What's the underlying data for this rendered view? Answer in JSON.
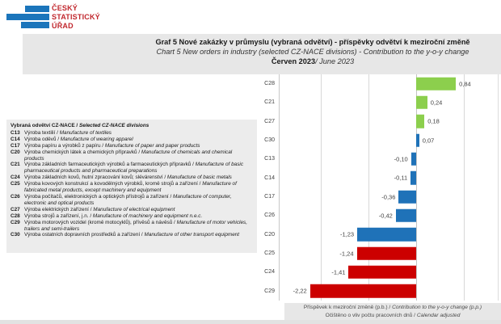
{
  "logo": {
    "line1": "ČESKÝ",
    "line2": "STATISTICKÝ",
    "line3": "ÚŘAD"
  },
  "title": {
    "line1": "Graf 5 Nové zakázky v průmyslu (vybraná odvětví) - příspěvky odvětví k meziroční změně",
    "line2": "Chart 5 New orders in industry (selected CZ-NACE divisions) - Contribution to the y-o-y change",
    "period_bold": "Červen 2023",
    "period_italic": "/ June 2023"
  },
  "legend": {
    "title_cs": "Vybraná odvětví CZ-NACE / ",
    "title_en": "Selected CZ-NACE divisions",
    "items": [
      {
        "code": "C13",
        "cs": "Výroba textilií",
        "en": "Manufacture of textiles"
      },
      {
        "code": "C14",
        "cs": "Výroba oděvů",
        "en": "Manufacture of wearing apparel"
      },
      {
        "code": "C17",
        "cs": "Výroba papíru a výrobků z papíru",
        "en": "Manufacture of paper and paper products"
      },
      {
        "code": "C20",
        "cs": "Výroba chemických látek a chemických přípravků",
        "en": "Manufacture of chemicals and chemical products"
      },
      {
        "code": "C21",
        "cs": "Výroba základních farmaceutických výrobků a farmaceutických přípravků",
        "en": "Manufacture of basic pharmaceutical products and pharmaceutical preparations"
      },
      {
        "code": "C24",
        "cs": "Výroba základních kovů, hutní zpracování kovů; slévárenství",
        "en": "Manufacture of basic metals"
      },
      {
        "code": "C25",
        "cs": "Výroba kovových konstrukcí a kovodělných výrobků, kromě strojů a zařízení",
        "en": "Manufacture of fabricated metal products, except machinery and equipment"
      },
      {
        "code": "C26",
        "cs": "Výroba počítačů, elektronických a optických přístrojů a zařízení",
        "en": "Manufacture of computer, electronic and optical products"
      },
      {
        "code": "C27",
        "cs": "Výroba elektrických zařízení",
        "en": "Manufacture of electrical equipment"
      },
      {
        "code": "C28",
        "cs": "Výroba strojů a zařízení, j.n.",
        "en": "Manufacture of machinery and equipment n.e.c."
      },
      {
        "code": "C29",
        "cs": "Výroba motorových vozidel (kromě motocyklů), přívěsů a návěsů",
        "en": "Manufacture of motor vehicles, trailers and semi-trailers"
      },
      {
        "code": "C30",
        "cs": "Výroba ostatních dopravních prostředků a zařízení",
        "en": "Manufacture of other transport equipment"
      }
    ]
  },
  "footer": {
    "line1_cs": "Příspěvek k meziroční změně (p.b.) / ",
    "line1_en": "Contribution to the y-o-y change (p.p.)",
    "line2_cs": "Očištěno o vliv počtu pracovních dnů / ",
    "line2_en": "Calendar adjusted"
  },
  "colors": {
    "green": "#8ccf4d",
    "blue": "#1f72b8",
    "red": "#cc0000",
    "logo_blue": "#1b75bb",
    "logo_red": "#c1272d",
    "panel_gray": "#e7e7e7"
  },
  "chart_data": {
    "type": "bar",
    "orientation": "horizontal",
    "title": "Graf 5 Nové zakázky v průmyslu (vybraná odvětví) - příspěvky odvětví k meziroční změně / Chart 5 New orders in industry (selected CZ-NACE divisions) - Contribution to the y-o-y change, Červen 2023 / June 2023",
    "xlabel": "Příspěvek k meziroční změně (p.b.) / Contribution to the y-o-y change (p.p.)",
    "note": "Očištěno o vliv počtu pracovních dnů / Calendar adjusted",
    "categories": [
      "C28",
      "C21",
      "C27",
      "C30",
      "C13",
      "C14",
      "C17",
      "C26",
      "C20",
      "C25",
      "C24",
      "C29"
    ],
    "values": [
      0.84,
      0.24,
      0.18,
      0.07,
      -0.1,
      -0.11,
      -0.36,
      -0.42,
      -1.23,
      -1.24,
      -1.41,
      -2.22
    ],
    "value_labels": [
      "0,84",
      "0,24",
      "0,18",
      "0,07",
      "-0,10",
      "-0,11",
      "-0,36",
      "-0,42",
      "-1,23",
      "-1,24",
      "-1,41",
      "-2,22"
    ],
    "bar_colors": [
      "green",
      "green",
      "green",
      "blue",
      "blue",
      "blue",
      "blue",
      "blue",
      "blue",
      "red",
      "red",
      "red"
    ],
    "xlim": [
      -2.86,
      1.72
    ],
    "gridlines": [
      -2,
      -1,
      0,
      1
    ],
    "grid": "vertical",
    "legend_position": "none"
  }
}
